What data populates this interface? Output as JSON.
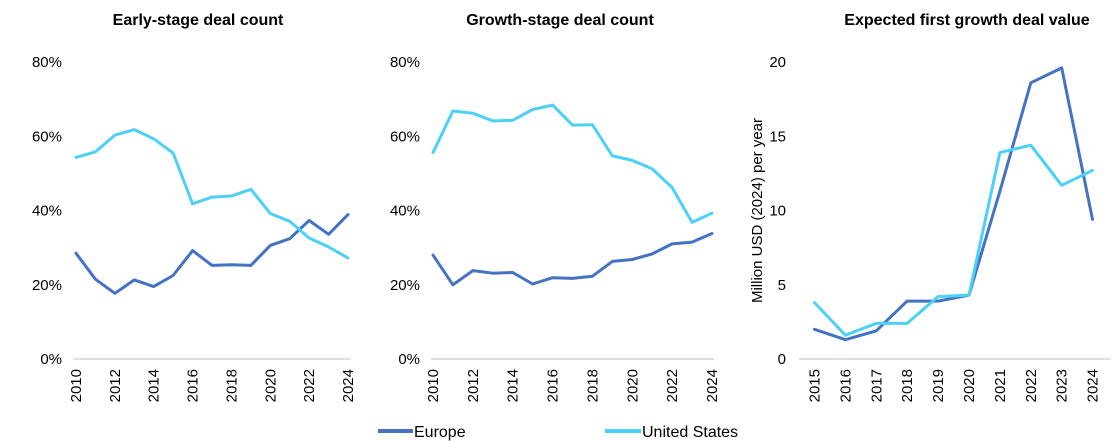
{
  "colors": {
    "europe": "#4472c4",
    "united_states": "#4dd0f5",
    "axis": "#bfbfbf"
  },
  "legend": {
    "items": [
      "Europe",
      "United States"
    ]
  },
  "chart_data": [
    {
      "type": "line",
      "title": "Early-stage  deal count",
      "xlabel": "",
      "ylabel": "",
      "x": [
        2010,
        2011,
        2012,
        2013,
        2014,
        2015,
        2016,
        2017,
        2018,
        2019,
        2020,
        2021,
        2022,
        2023,
        2024
      ],
      "xticks": [
        "2010",
        "2012",
        "2014",
        "2016",
        "2018",
        "2020",
        "2022",
        "2024"
      ],
      "yticks": [
        "0%",
        "20%",
        "40%",
        "60%",
        "80%"
      ],
      "ylim": [
        0,
        80
      ],
      "series": [
        {
          "name": "Europe",
          "values": [
            28.5,
            21.5,
            17.7,
            21.3,
            19.5,
            22.5,
            29.2,
            25.2,
            25.4,
            25.2,
            30.6,
            32.4,
            37.3,
            33.6,
            38.9
          ]
        },
        {
          "name": "United States",
          "values": [
            54.3,
            55.8,
            60.3,
            61.8,
            59.3,
            55.5,
            41.8,
            43.6,
            43.9,
            45.7,
            39.2,
            37.1,
            32.6,
            30.2,
            27.2
          ]
        }
      ]
    },
    {
      "type": "line",
      "title": "Growth-stage deal count",
      "xlabel": "",
      "ylabel": "",
      "x": [
        2010,
        2011,
        2012,
        2013,
        2014,
        2015,
        2016,
        2017,
        2018,
        2019,
        2020,
        2021,
        2022,
        2023,
        2024
      ],
      "xticks": [
        "2010",
        "2012",
        "2014",
        "2016",
        "2018",
        "2020",
        "2022",
        "2024"
      ],
      "yticks": [
        "0%",
        "20%",
        "40%",
        "60%",
        "80%"
      ],
      "ylim": [
        0,
        80
      ],
      "series": [
        {
          "name": "Europe",
          "values": [
            28.0,
            20.0,
            23.8,
            23.1,
            23.3,
            20.2,
            21.9,
            21.7,
            22.3,
            26.3,
            26.8,
            28.3,
            31.0,
            31.5,
            33.8
          ]
        },
        {
          "name": "United States",
          "values": [
            55.6,
            66.8,
            66.2,
            64.1,
            64.3,
            67.2,
            68.4,
            63.0,
            63.1,
            54.7,
            53.5,
            51.2,
            46.2,
            36.8,
            39.3
          ]
        }
      ]
    },
    {
      "type": "line",
      "title": "Expected first growth deal value",
      "xlabel": "",
      "ylabel": "Million USD (2024) per year",
      "x": [
        2015,
        2016,
        2017,
        2018,
        2019,
        2020,
        2021,
        2022,
        2023,
        2024
      ],
      "xticks": [
        "2015",
        "2016",
        "2017",
        "2018",
        "2019",
        "2020",
        "2021",
        "2022",
        "2023",
        "2024"
      ],
      "yticks": [
        "0",
        "5",
        "10",
        "15",
        "20"
      ],
      "ylim": [
        0,
        20
      ],
      "series": [
        {
          "name": "Europe",
          "values": [
            2.0,
            1.3,
            1.9,
            3.9,
            3.9,
            4.3,
            11.3,
            18.6,
            19.6,
            9.4
          ]
        },
        {
          "name": "United States",
          "values": [
            3.8,
            1.6,
            2.4,
            2.4,
            4.2,
            4.3,
            13.9,
            14.4,
            11.7,
            12.7
          ]
        }
      ]
    }
  ]
}
